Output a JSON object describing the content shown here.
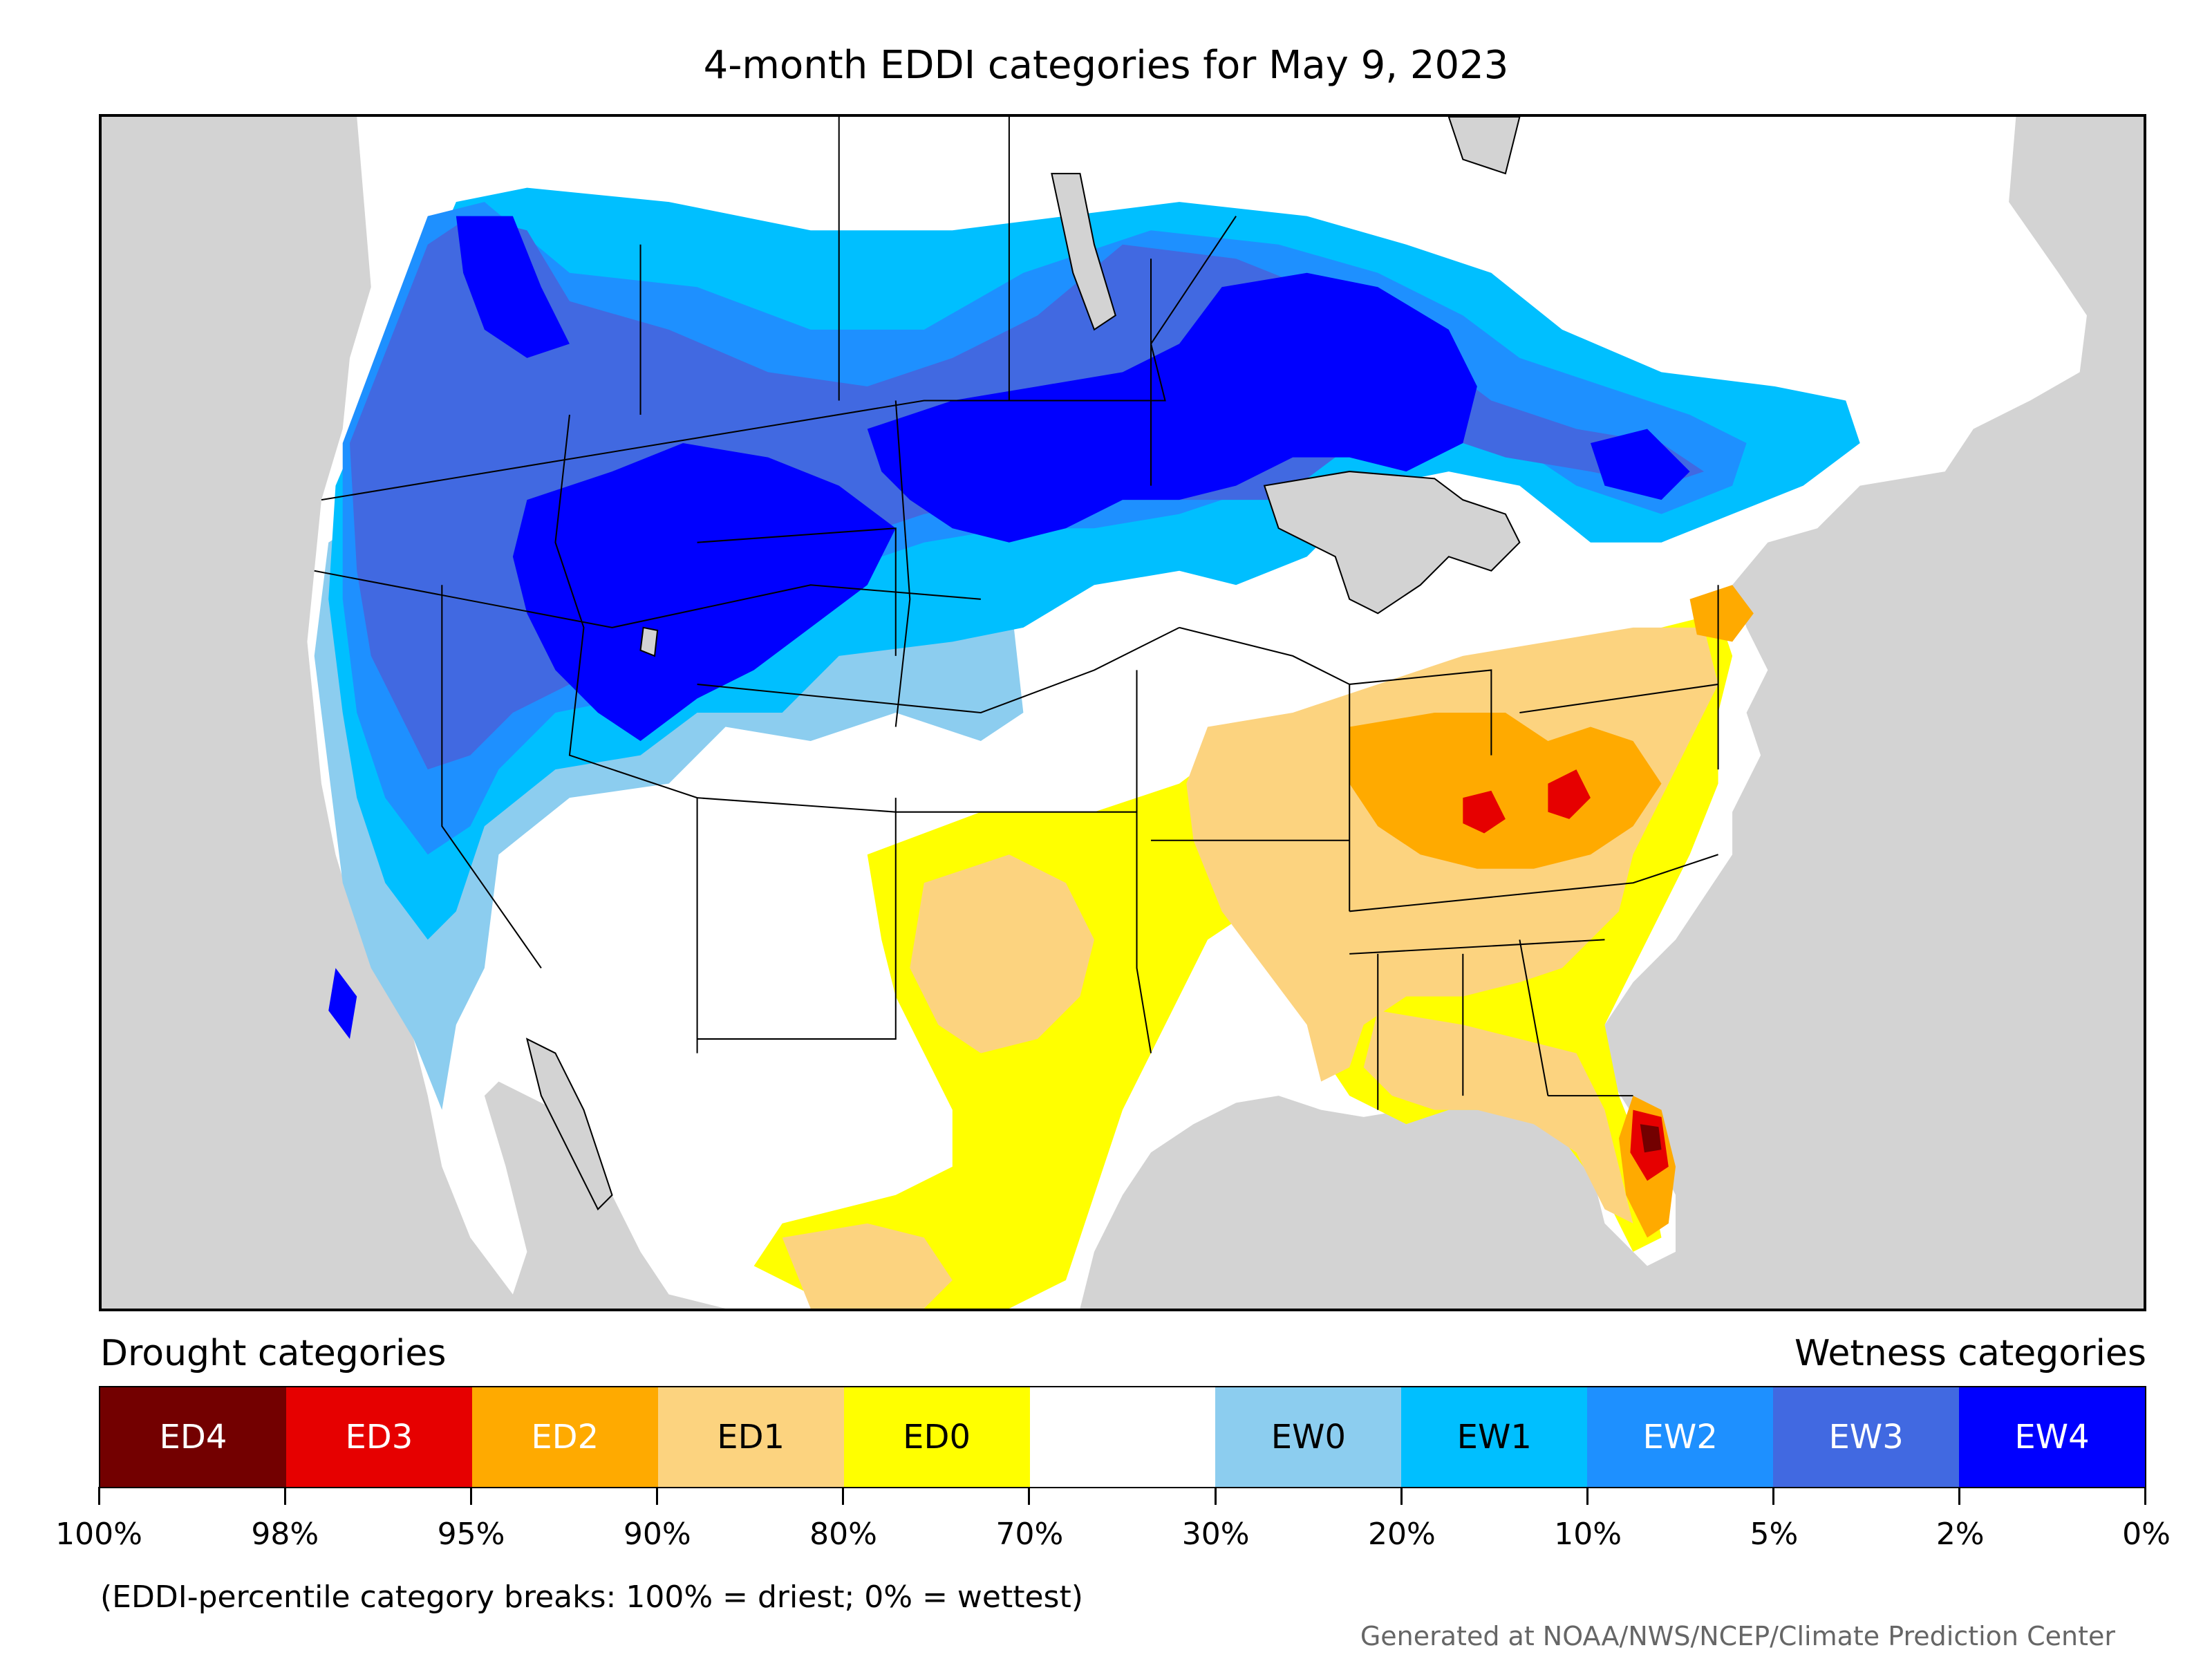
{
  "title": "4-month EDDI categories for May 9, 2023",
  "legend": {
    "drought_heading": "Drought categories",
    "wetness_heading": "Wetness categories",
    "categories": [
      {
        "label": "ED4",
        "color": "#730000",
        "text_color": "#ffffff"
      },
      {
        "label": "ED3",
        "color": "#e60000",
        "text_color": "#ffffff"
      },
      {
        "label": "ED2",
        "color": "#ffaa00",
        "text_color": "#ffffff"
      },
      {
        "label": "ED1",
        "color": "#fcd37f",
        "text_color": "#000000"
      },
      {
        "label": "ED0",
        "color": "#ffff00",
        "text_color": "#000000"
      },
      {
        "label": "",
        "color": "#ffffff",
        "text_color": "#000000"
      },
      {
        "label": "EW0",
        "color": "#8ccdef",
        "text_color": "#000000"
      },
      {
        "label": "EW1",
        "color": "#00bfff",
        "text_color": "#000000"
      },
      {
        "label": "EW2",
        "color": "#1e90ff",
        "text_color": "#ffffff"
      },
      {
        "label": "EW3",
        "color": "#4169e1",
        "text_color": "#ffffff"
      },
      {
        "label": "EW4",
        "color": "#0000ff",
        "text_color": "#ffffff"
      }
    ],
    "ticks": [
      "100%",
      "98%",
      "95%",
      "90%",
      "80%",
      "70%",
      "30%",
      "20%",
      "10%",
      "5%",
      "2%",
      "0%"
    ]
  },
  "note": "(EDDI-percentile category breaks: 100% = driest; 0% = wettest)",
  "credit": "Generated at NOAA/NWS/NCEP/Climate Prediction Center",
  "map_colors": {
    "background": "#d3d3d3",
    "land": "#ffffff",
    "water": "#d3d3d3"
  }
}
